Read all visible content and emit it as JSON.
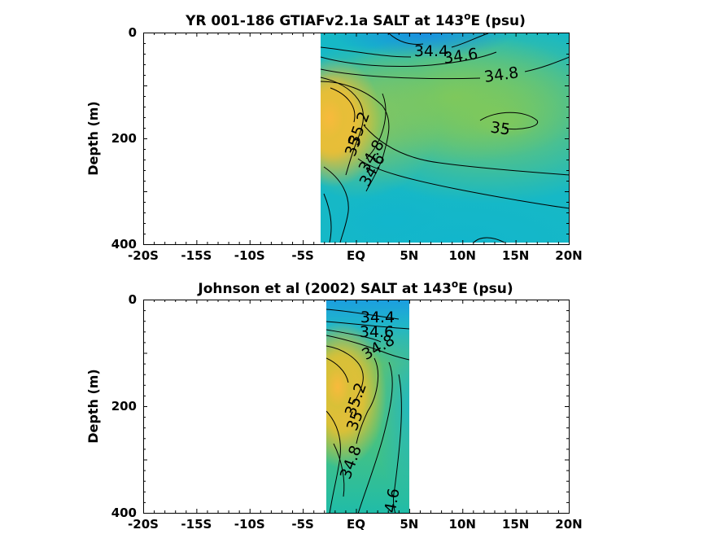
{
  "chart_data": [
    {
      "type": "heatmap",
      "title_main": "YR 001-186 GTIAFv2.1a SALT at 143",
      "title_sup": "o",
      "title_end": "E (psu)",
      "ylabel": "Depth (m)",
      "xticks": [
        "-20S",
        "-15S",
        "-10S",
        "-5S",
        "EQ",
        "5N",
        "10N",
        "15N",
        "20N"
      ],
      "xtick_values": [
        -20,
        -15,
        -10,
        -5,
        0,
        5,
        10,
        15,
        20
      ],
      "yticks": [
        "0",
        "200",
        "400"
      ],
      "ytick_values": [
        0,
        200,
        400
      ],
      "xlim": [
        -20,
        20
      ],
      "ylim": [
        0,
        400
      ],
      "data_extent_lat": [
        -3,
        20
      ],
      "contour_labels": [
        "34.4",
        "34.6",
        "34.8",
        "35",
        "35.2",
        "35",
        "34.8",
        "34.6"
      ],
      "colors": {
        "low": "#1ca7d6",
        "mid_low": "#14bcc0",
        "mid": "#5cc27a",
        "mid_high": "#a8c84a",
        "high": "#f8ba3c"
      }
    },
    {
      "type": "heatmap",
      "title_main": "Johnson et al (2002) SALT at 143",
      "title_sup": "o",
      "title_end": "E (psu)",
      "ylabel": "Depth (m)",
      "xticks": [
        "-20S",
        "-15S",
        "-10S",
        "-5S",
        "EQ",
        "5N",
        "10N",
        "15N",
        "20N"
      ],
      "xtick_values": [
        -20,
        -15,
        -10,
        -5,
        0,
        5,
        10,
        15,
        20
      ],
      "yticks": [
        "0",
        "200",
        "400"
      ],
      "ytick_values": [
        0,
        200,
        400
      ],
      "xlim": [
        -20,
        20
      ],
      "ylim": [
        0,
        400
      ],
      "data_extent_lat": [
        -2.5,
        5
      ],
      "contour_labels": [
        "34.4",
        "34.6",
        "34.8",
        "35.2",
        "35",
        "34.8",
        "34.6"
      ],
      "colors": {
        "low": "#1ca7d6",
        "mid_low": "#14bcc0",
        "mid": "#5cc27a",
        "mid_high": "#a8c84a",
        "high": "#f8ba3c"
      }
    }
  ]
}
